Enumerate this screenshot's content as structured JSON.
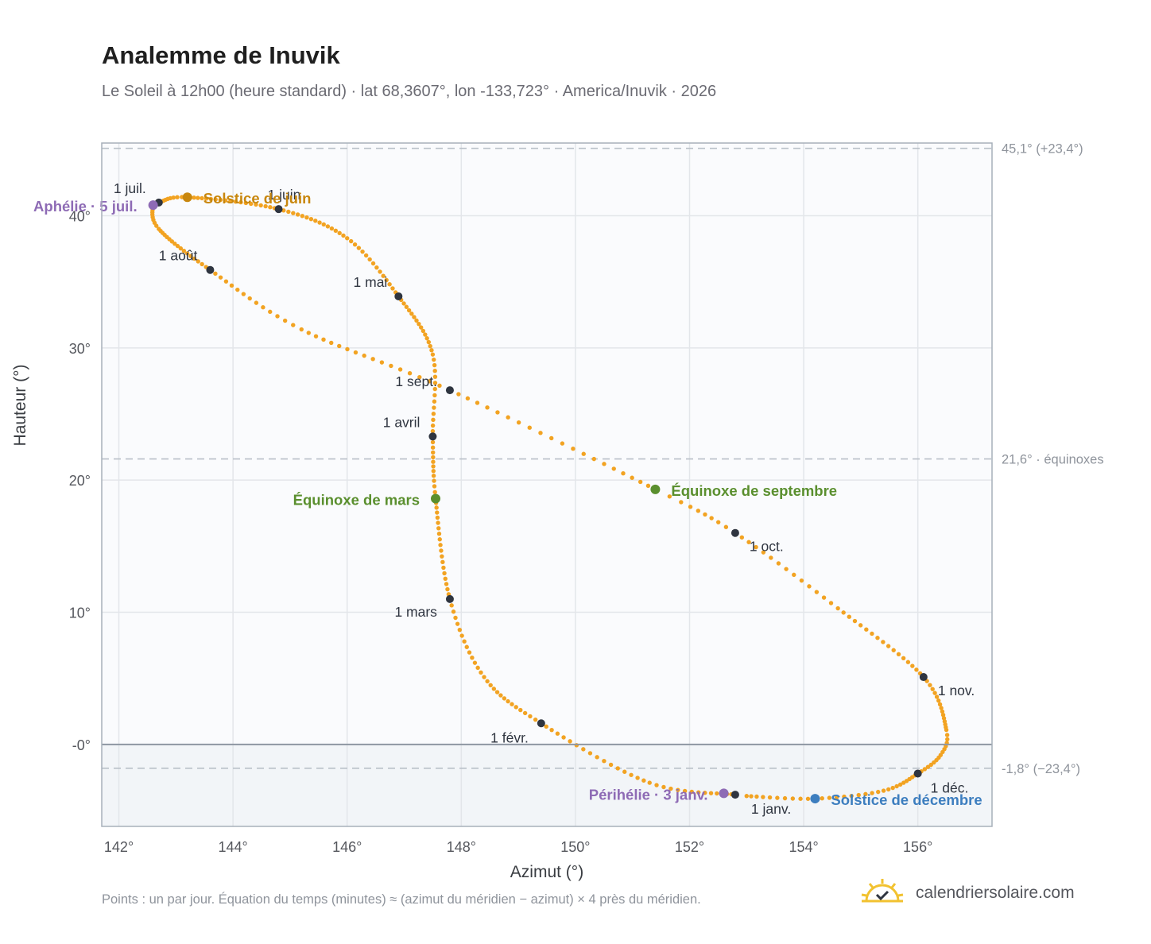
{
  "header": {
    "title": "Analemme de Inuvik",
    "subtitle": "Le Soleil à 12h00 (heure standard) · lat 68,3607°, lon -133,723° · America/Inuvik · 2026"
  },
  "footer": {
    "note": "Points : un par jour. Équation du temps (minutes) ≈ (azimut du méridien − azimut) × 4 près du méridien.",
    "brand": "calendriersolaire.com",
    "brand_logo_icon": "sun-check-icon"
  },
  "colors": {
    "analemma": "#f2a322",
    "month_marker": "#2f3540",
    "solstice_june": "#c8870e",
    "solstice_december": "#3d7ebf",
    "equinox": "#5a8f2e",
    "perihelion_aphelion": "#8e6bb5",
    "below_horizon": "#f2f5f8",
    "plot_background": "#fafbfd"
  },
  "chart_data": {
    "type": "scatter",
    "xlabel": "Azimut (°)",
    "ylabel": "Hauteur (°)",
    "xlim": [
      141.7,
      157.3
    ],
    "ylim": [
      -6.2,
      45.5
    ],
    "x_ticks": [
      142,
      144,
      146,
      148,
      150,
      152,
      154,
      156
    ],
    "x_tick_labels": [
      "142°",
      "144°",
      "146°",
      "148°",
      "150°",
      "152°",
      "154°",
      "156°"
    ],
    "y_ticks": [
      0,
      10,
      20,
      30,
      40
    ],
    "y_tick_labels": [
      "-0°",
      "10°",
      "20°",
      "30°",
      "40°"
    ],
    "grid": true,
    "horizon_line": 0,
    "reference_lines": [
      {
        "y": 45.1,
        "label": "45,1° (+23,4°)"
      },
      {
        "y": 21.6,
        "label": "21,6° · équinoxes"
      },
      {
        "y": -1.8,
        "label": "-1,8° (−23,4°)"
      }
    ],
    "series": [
      {
        "points_per": "day",
        "anchors_day_of_year": [
          1,
          15,
          32,
          46,
          60,
          79,
          91,
          105,
          121,
          136,
          152,
          172,
          182,
          186,
          196,
          213,
          227,
          244,
          265,
          274,
          288,
          305,
          320,
          327,
          335,
          345,
          355,
          365
        ],
        "x": [
          152.8,
          151.3,
          149.4,
          148.4,
          147.8,
          147.55,
          147.5,
          147.5,
          146.9,
          146.0,
          144.8,
          143.2,
          142.7,
          142.6,
          142.7,
          143.6,
          145.2,
          147.8,
          151.4,
          152.8,
          154.6,
          156.1,
          156.5,
          156.4,
          156.0,
          155.4,
          154.2,
          153.0
        ],
        "y": [
          -3.8,
          -2.9,
          1.6,
          5.1,
          11.0,
          18.6,
          23.3,
          29.5,
          33.9,
          38.3,
          40.5,
          41.4,
          41.0,
          40.8,
          39.0,
          35.9,
          31.4,
          26.8,
          19.3,
          16.0,
          10.3,
          5.1,
          1.1,
          -0.8,
          -2.2,
          -3.5,
          -4.1,
          -3.9
        ]
      }
    ],
    "month_markers": [
      {
        "label": "1 janv.",
        "x": 152.8,
        "y": -3.8
      },
      {
        "label": "1 févr.",
        "x": 149.4,
        "y": 1.6
      },
      {
        "label": "1 mars",
        "x": 147.8,
        "y": 11.0
      },
      {
        "label": "1 avril",
        "x": 147.5,
        "y": 23.3
      },
      {
        "label": "1 mai",
        "x": 146.9,
        "y": 33.9
      },
      {
        "label": "1 juin",
        "x": 144.8,
        "y": 40.5
      },
      {
        "label": "1 juil.",
        "x": 142.7,
        "y": 41.0
      },
      {
        "label": "1 août",
        "x": 143.6,
        "y": 35.9
      },
      {
        "label": "1 sept.",
        "x": 147.8,
        "y": 26.8
      },
      {
        "label": "1 oct.",
        "x": 152.8,
        "y": 16.0
      },
      {
        "label": "1 nov.",
        "x": 156.1,
        "y": 5.1
      },
      {
        "label": "1 déc.",
        "x": 156.0,
        "y": -2.2
      }
    ],
    "events": [
      {
        "label": "Solstice de juin",
        "x": 143.2,
        "y": 41.4,
        "kind": "solstice_june"
      },
      {
        "label": "Solstice de décembre",
        "x": 154.2,
        "y": -4.1,
        "kind": "solstice_december"
      },
      {
        "label": "Équinoxe de mars",
        "x": 147.55,
        "y": 18.6,
        "kind": "equinox"
      },
      {
        "label": "Équinoxe de septembre",
        "x": 151.4,
        "y": 19.3,
        "kind": "equinox"
      },
      {
        "label": "Aphélie · 5 juil.",
        "x": 142.6,
        "y": 40.8,
        "kind": "perihelion_aphelion"
      },
      {
        "label": "Périhélie · 3 janv.",
        "x": 152.6,
        "y": -3.7,
        "kind": "perihelion_aphelion"
      }
    ]
  }
}
